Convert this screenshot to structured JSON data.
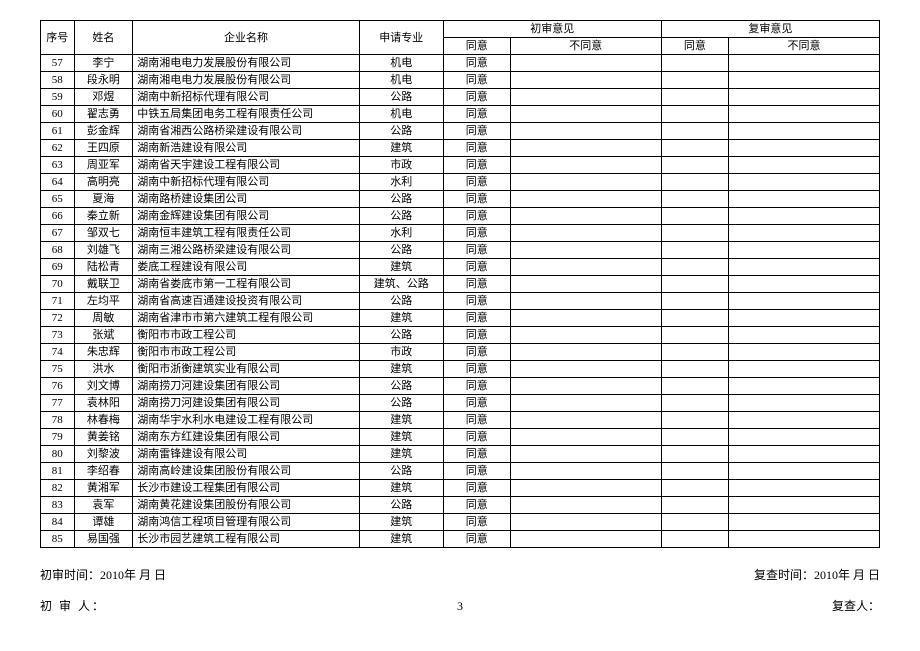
{
  "headers": {
    "seq": "序号",
    "name": "姓名",
    "corp": "企业名称",
    "spec": "申请专业",
    "first_review": "初审意见",
    "re_review": "复审意见",
    "agree": "同意",
    "disagree": "不同意"
  },
  "rows": [
    {
      "seq": "57",
      "name": "李宁",
      "corp": "湖南湘电电力发展股份有限公司",
      "spec": "机电",
      "first_agree": "同意"
    },
    {
      "seq": "58",
      "name": "段永明",
      "corp": "湖南湘电电力发展股份有限公司",
      "spec": "机电",
      "first_agree": "同意"
    },
    {
      "seq": "59",
      "name": "邓煜",
      "corp": "湖南中新招标代理有限公司",
      "spec": "公路",
      "first_agree": "同意"
    },
    {
      "seq": "60",
      "name": "翟志勇",
      "corp": "中铁五局集团电务工程有限责任公司",
      "spec": "机电",
      "first_agree": "同意"
    },
    {
      "seq": "61",
      "name": "彭金辉",
      "corp": "湖南省湘西公路桥梁建设有限公司",
      "spec": "公路",
      "first_agree": "同意"
    },
    {
      "seq": "62",
      "name": "王四原",
      "corp": "湖南新浩建设有限公司",
      "spec": "建筑",
      "first_agree": "同意"
    },
    {
      "seq": "63",
      "name": "周亚军",
      "corp": "湖南省天宇建设工程有限公司",
      "spec": "市政",
      "first_agree": "同意"
    },
    {
      "seq": "64",
      "name": "高明亮",
      "corp": "湖南中新招标代理有限公司",
      "spec": "水利",
      "first_agree": "同意"
    },
    {
      "seq": "65",
      "name": "夏海",
      "corp": "湖南路桥建设集团公司",
      "spec": "公路",
      "first_agree": "同意"
    },
    {
      "seq": "66",
      "name": "秦立新",
      "corp": "湖南金辉建设集团有限公司",
      "spec": "公路",
      "first_agree": "同意"
    },
    {
      "seq": "67",
      "name": "邹双七",
      "corp": "湖南恒丰建筑工程有限责任公司",
      "spec": "水利",
      "first_agree": "同意"
    },
    {
      "seq": "68",
      "name": "刘雄飞",
      "corp": "湖南三湘公路桥梁建设有限公司",
      "spec": "公路",
      "first_agree": "同意"
    },
    {
      "seq": "69",
      "name": "陆松青",
      "corp": "娄底工程建设有限公司",
      "spec": "建筑",
      "first_agree": "同意"
    },
    {
      "seq": "70",
      "name": "戴联卫",
      "corp": "湖南省娄底市第一工程有限公司",
      "spec": "建筑、公路",
      "first_agree": "同意"
    },
    {
      "seq": "71",
      "name": "左均平",
      "corp": "湖南省高速百通建设投资有限公司",
      "spec": "公路",
      "first_agree": "同意"
    },
    {
      "seq": "72",
      "name": "周敏",
      "corp": "湖南省津市市第六建筑工程有限公司",
      "spec": "建筑",
      "first_agree": "同意"
    },
    {
      "seq": "73",
      "name": "张斌",
      "corp": "衡阳市市政工程公司",
      "spec": "公路",
      "first_agree": "同意"
    },
    {
      "seq": "74",
      "name": "朱忠辉",
      "corp": "衡阳市市政工程公司",
      "spec": "市政",
      "first_agree": "同意"
    },
    {
      "seq": "75",
      "name": "洪水",
      "corp": "衡阳市浙衡建筑实业有限公司",
      "spec": "建筑",
      "first_agree": "同意"
    },
    {
      "seq": "76",
      "name": "刘文博",
      "corp": "湖南捞刀河建设集团有限公司",
      "spec": "公路",
      "first_agree": "同意"
    },
    {
      "seq": "77",
      "name": "袁林阳",
      "corp": "湖南捞刀河建设集团有限公司",
      "spec": "公路",
      "first_agree": "同意"
    },
    {
      "seq": "78",
      "name": "林春梅",
      "corp": "湖南华宇水利水电建设工程有限公司",
      "spec": "建筑",
      "first_agree": "同意"
    },
    {
      "seq": "79",
      "name": "黄姜铭",
      "corp": "湖南东方红建设集团有限公司",
      "spec": "建筑",
      "first_agree": "同意"
    },
    {
      "seq": "80",
      "name": "刘黎波",
      "corp": "湖南雷锋建设有限公司",
      "spec": "建筑",
      "first_agree": "同意"
    },
    {
      "seq": "81",
      "name": "李绍春",
      "corp": "湖南高岭建设集团股份有限公司",
      "spec": "公路",
      "first_agree": "同意"
    },
    {
      "seq": "82",
      "name": "黄湘军",
      "corp": "长沙市建设工程集团有限公司",
      "spec": "建筑",
      "first_agree": "同意"
    },
    {
      "seq": "83",
      "name": "袁军",
      "corp": "湖南黄花建设集团股份有限公司",
      "spec": "公路",
      "first_agree": "同意"
    },
    {
      "seq": "84",
      "name": "谭雄",
      "corp": "湖南鸿信工程项目管理有限公司",
      "spec": "建筑",
      "first_agree": "同意"
    },
    {
      "seq": "85",
      "name": "易国强",
      "corp": "长沙市园艺建筑工程有限公司",
      "spec": "建筑",
      "first_agree": "同意"
    }
  ],
  "footer": {
    "first_review_time": "初审时间：2010年 月  日",
    "re_review_time": "复查时间：2010年 月  日",
    "first_reviewer": "初 审 人：",
    "re_reviewer": "复查人：",
    "page": "3"
  }
}
